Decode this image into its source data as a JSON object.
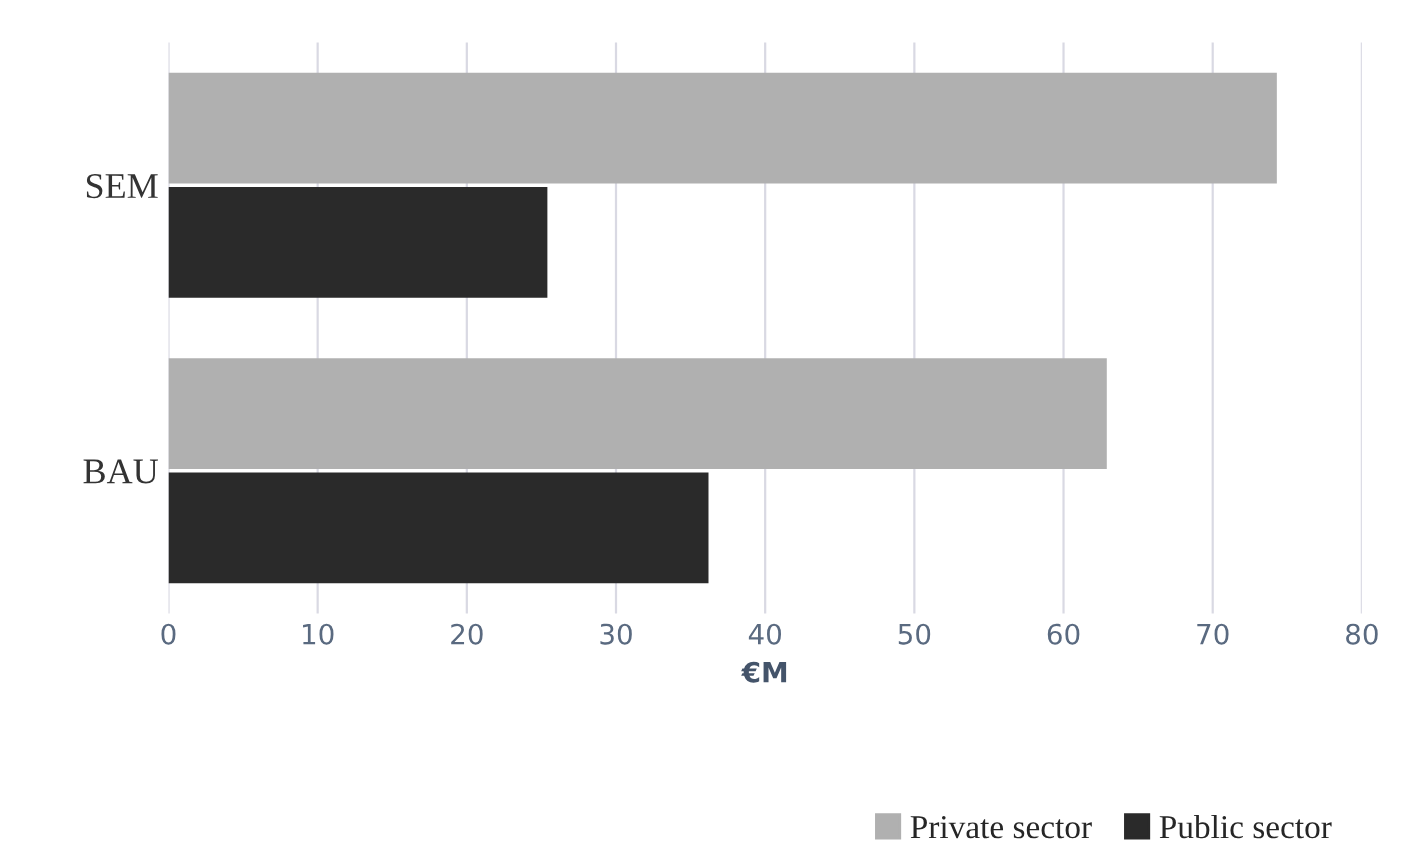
{
  "chart_data": {
    "type": "bar",
    "orientation": "horizontal",
    "categories": [
      "SEM",
      "BAU"
    ],
    "xlabel": "€M",
    "series": [
      {
        "name": "Private sector",
        "color": "#b0b0b0",
        "values": [
          74.3,
          62.9
        ]
      },
      {
        "name": "Public sector",
        "color": "#2a2a2a",
        "values": [
          25.4,
          36.2
        ]
      }
    ],
    "xlim": [
      0,
      80
    ],
    "xticks": [
      0,
      10,
      20,
      30,
      40,
      50,
      60,
      70,
      80
    ],
    "grid": "x",
    "legend": "bottom right"
  }
}
